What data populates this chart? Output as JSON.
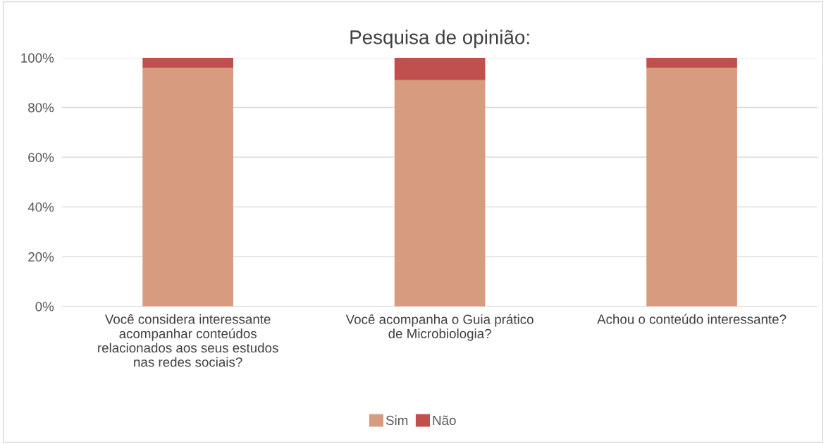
{
  "chart_data": {
    "type": "bar",
    "title": "Pesquisa de opinião:",
    "stacked": true,
    "categories": [
      "Você considera interessante acompanhar conteúdos relacionados aos seus estudos nas redes sociais?",
      "Você acompanha o Guia prático de Microbiologia?",
      "Achou o conteúdo interessante?"
    ],
    "series": [
      {
        "name": "Sim",
        "color": "#d79b80",
        "values": [
          96,
          91,
          96
        ]
      },
      {
        "name": "Não",
        "color": "#c0504d",
        "values": [
          4,
          9,
          4
        ]
      }
    ],
    "ylim": [
      0,
      100
    ],
    "yticks": [
      {
        "value": 0,
        "label": "0%"
      },
      {
        "value": 20,
        "label": "20%"
      },
      {
        "value": 40,
        "label": "40%"
      },
      {
        "value": 60,
        "label": "60%"
      },
      {
        "value": 80,
        "label": "80%"
      },
      {
        "value": 100,
        "label": "100%"
      }
    ],
    "grid": "y",
    "legend": "bottom"
  }
}
